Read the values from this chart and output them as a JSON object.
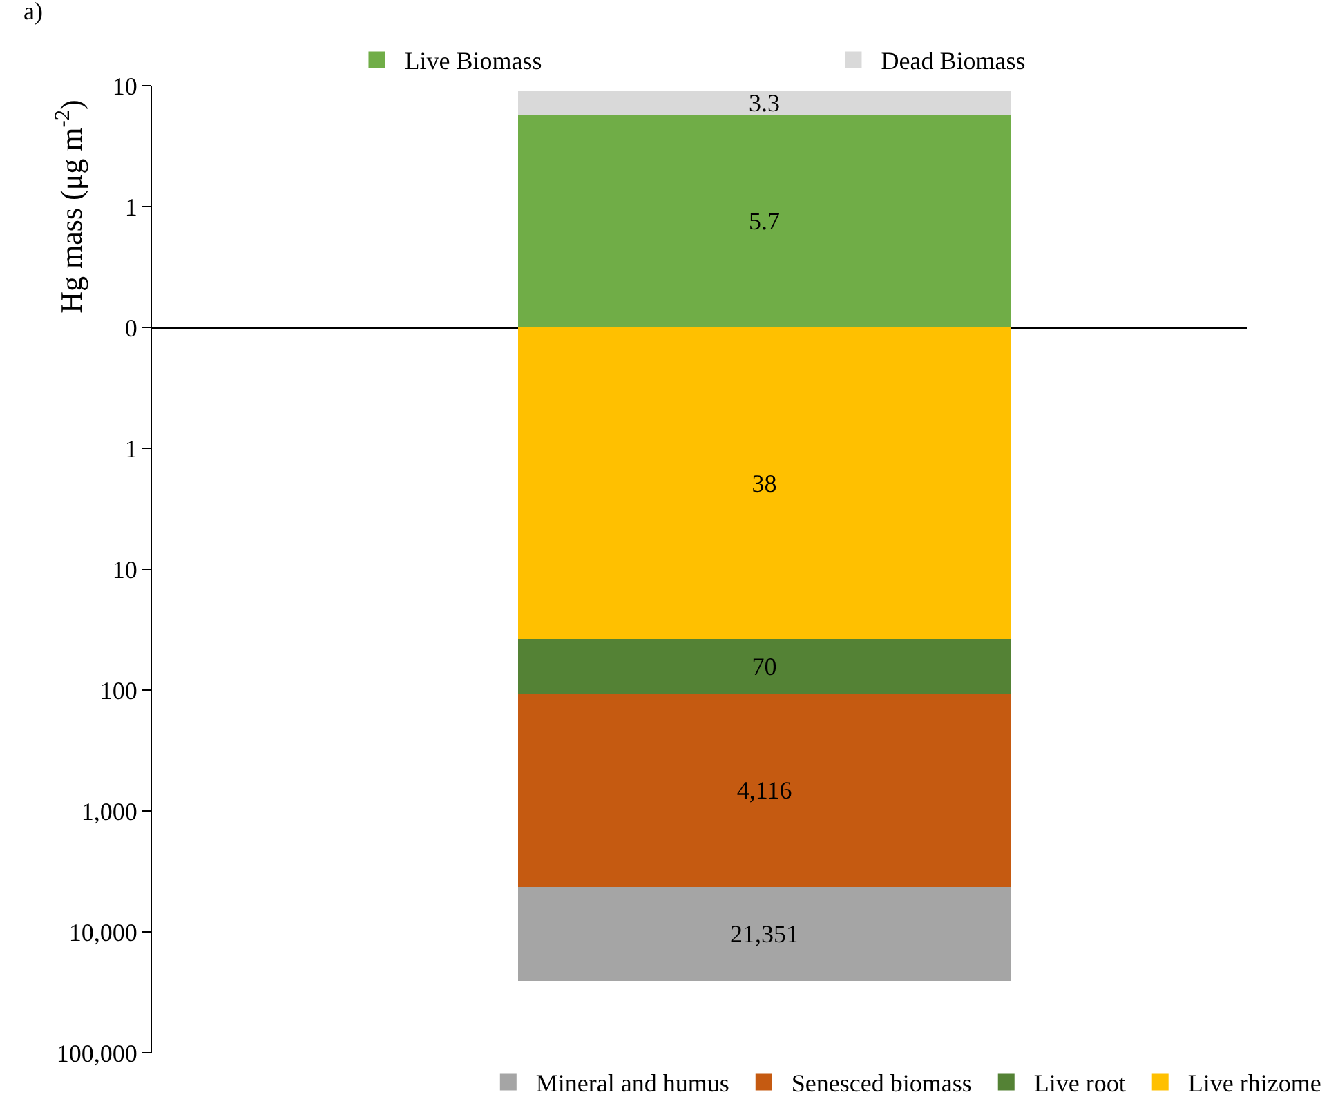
{
  "chart_data": [
    {
      "type": "bar",
      "title": "a)",
      "ylabel": "Hg mass (μg m$^{-2}$)",
      "categories": [
        null
      ],
      "stacked": true,
      "log": true,
      "ylim": [
        0.1,
        10
      ],
      "yticks": [
        {
          "value": 0.1,
          "label": "0"
        },
        1,
        10
      ],
      "tick_labels": "y",
      "legend": "top",
      "data_labels": true,
      "series": [
        {
          "name": "Live Biomass",
          "color": "#70ad47",
          "values": [
            5.7
          ]
        },
        {
          "name": "Dead Biomass",
          "color": "#d9d9d9",
          "values": [
            3.3
          ]
        }
      ]
    },
    {
      "type": "bar",
      "categories": [
        null
      ],
      "stacked": true,
      "log": true,
      "ylim": [
        100000,
        0.1
      ],
      "yticks": [
        1,
        10,
        100,
        {
          "value": 1000,
          "label": "1,000"
        },
        {
          "value": 10000,
          "label": "10,000"
        },
        {
          "value": 100000,
          "label": "100,000"
        }
      ],
      "tick_labels": "y",
      "legend": "bottom",
      "series": [
        {
          "name": "Live rhizome",
          "color": "#ffc000",
          "values": [
            38
          ],
          "value_labels": [
            "38"
          ]
        },
        {
          "name": "Live root",
          "color": "#548235",
          "values": [
            70
          ],
          "value_labels": [
            "70"
          ]
        },
        {
          "name": "Senesced biomass",
          "color": "#c55a11",
          "values": [
            4116
          ],
          "value_labels": [
            "4,116"
          ]
        },
        {
          "name": "Mineral and humus",
          "color": "#a5a5a5",
          "values": [
            21351
          ],
          "value_labels": [
            "21,351"
          ]
        }
      ]
    }
  ]
}
